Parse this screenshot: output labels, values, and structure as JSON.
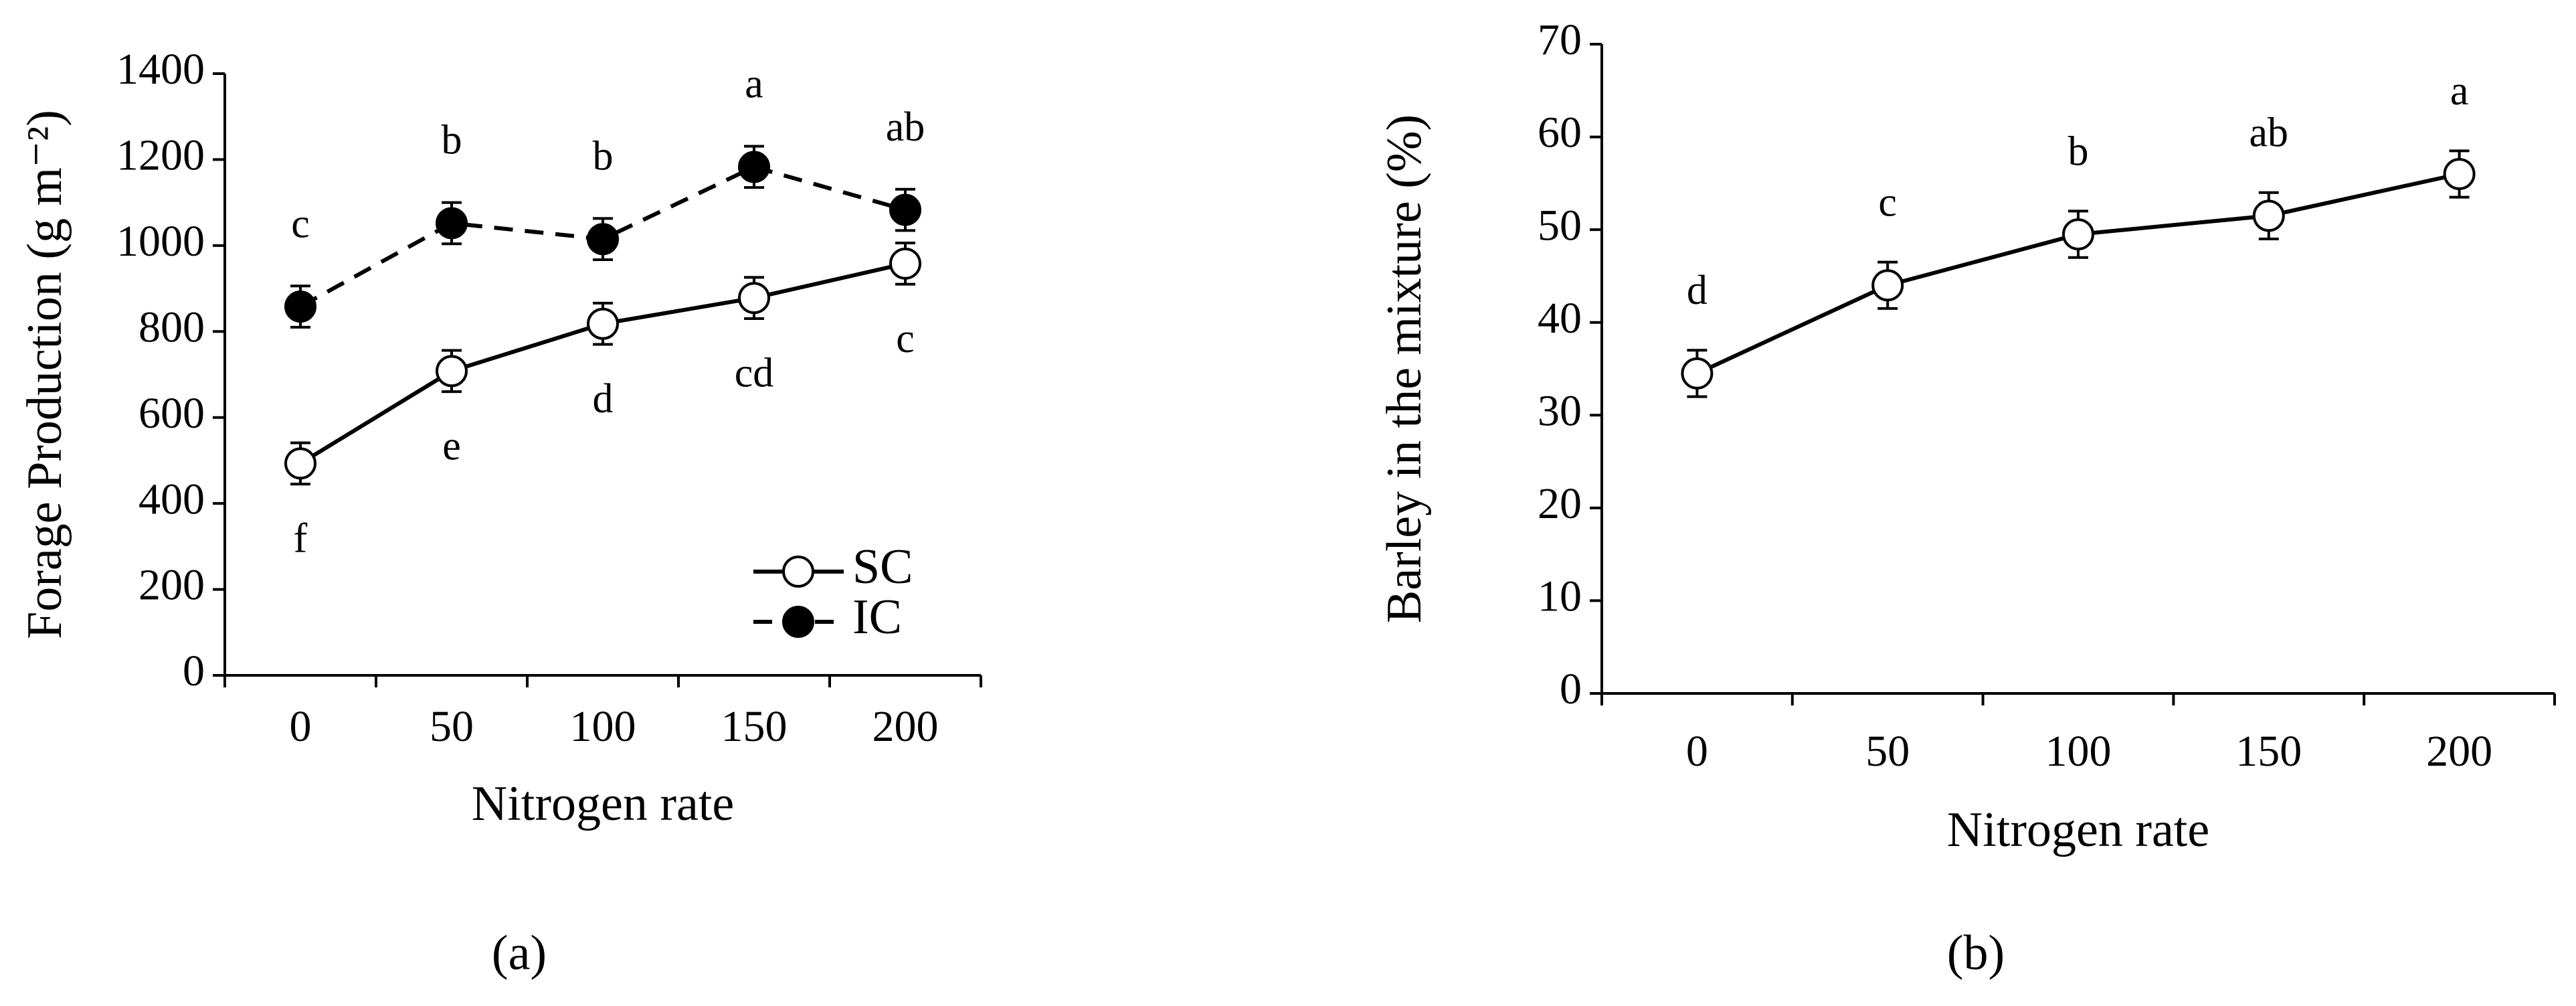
{
  "chart_data": [
    {
      "type": "line",
      "caption": "(a)",
      "xlabel": "Nitrogen rate",
      "ylabel": "Forage Production  (g m⁻²)",
      "categories": [
        "0",
        "50",
        "100",
        "150",
        "200"
      ],
      "ylim": [
        0,
        1400
      ],
      "yticks": [
        0,
        200,
        400,
        600,
        800,
        1000,
        1200,
        1400
      ],
      "legend": "lower right",
      "series": [
        {
          "name": "SC",
          "color": "#000000",
          "marker": "open",
          "dash": false,
          "letters_position": "below",
          "values": [
            493,
            708,
            818,
            878,
            958
          ],
          "errors": [
            48,
            48,
            48,
            48,
            48
          ],
          "letters": [
            "f",
            "e",
            "d",
            "cd",
            "c"
          ]
        },
        {
          "name": "IC",
          "color": "#000000",
          "marker": "filled",
          "dash": true,
          "letters_position": "above",
          "values": [
            858,
            1052,
            1015,
            1183,
            1083
          ],
          "errors": [
            48,
            48,
            48,
            48,
            48
          ],
          "letters": [
            "c",
            "b",
            "b",
            "a",
            "ab"
          ]
        }
      ]
    },
    {
      "type": "line",
      "caption": "(b)",
      "xlabel": "Nitrogen rate",
      "ylabel": "Barley in the mixture  (%)",
      "categories": [
        "0",
        "50",
        "100",
        "150",
        "200"
      ],
      "ylim": [
        0,
        70
      ],
      "yticks": [
        0,
        10,
        20,
        30,
        40,
        50,
        60,
        70
      ],
      "series": [
        {
          "color": "#000000",
          "marker": "open",
          "dash": false,
          "letters_position": "above",
          "values": [
            34.5,
            44,
            49.5,
            51.5,
            56
          ],
          "errors": [
            2.5,
            2.5,
            2.5,
            2.5,
            2.5
          ],
          "letters": [
            "d",
            "c",
            "b",
            "ab",
            "a"
          ]
        }
      ]
    }
  ]
}
